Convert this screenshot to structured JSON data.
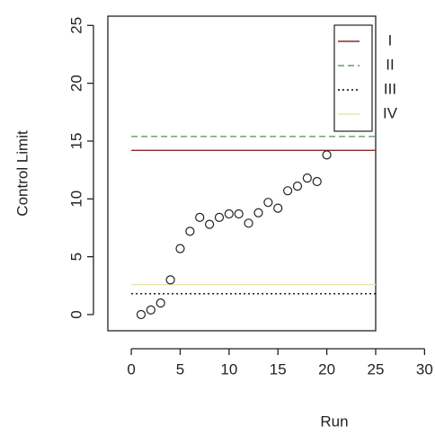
{
  "chart_data": {
    "type": "scatter",
    "xlabel": "Run",
    "ylabel": "Control Limit",
    "x": [
      1,
      2,
      3,
      4,
      5,
      6,
      7,
      8,
      9,
      10,
      11,
      12,
      13,
      14,
      15,
      16,
      17,
      18,
      19,
      20
    ],
    "values": [
      0.0,
      0.4,
      1.0,
      3.0,
      5.7,
      7.2,
      8.4,
      7.8,
      8.4,
      8.7,
      8.7,
      7.9,
      8.8,
      9.7,
      9.2,
      10.7,
      11.1,
      11.8,
      11.5,
      13.8
    ],
    "xlim": [
      -2.4,
      25
    ],
    "ylim": [
      -1.4,
      25.8
    ],
    "xticks": [
      0,
      5,
      10,
      15,
      20,
      25,
      30
    ],
    "yticks": [
      0,
      5,
      10,
      15,
      20,
      25
    ],
    "hlines": [
      {
        "name": "I",
        "value": 14.2,
        "color": "#8b2a2a",
        "style": "solid"
      },
      {
        "name": "II",
        "value": 15.4,
        "color": "#6a9a6a",
        "style": "dashed"
      },
      {
        "name": "III",
        "value": 1.8,
        "color": "#000000",
        "style": "dotted"
      },
      {
        "name": "IV",
        "value": 2.6,
        "color": "#e8e6a8",
        "style": "solid"
      }
    ],
    "legend": "top-right"
  }
}
